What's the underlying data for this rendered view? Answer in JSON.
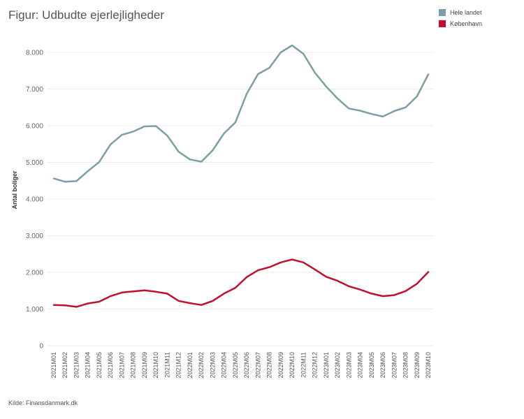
{
  "title": "Figur: Udbudte ejerlejligheder",
  "source": "Kilde: Finansdanmark.dk",
  "chart_data": {
    "type": "line",
    "title": "Figur: Udbudte ejerlejligheder",
    "ylabel": "Antal boliger",
    "xlabel": "",
    "ylim": [
      0,
      8500
    ],
    "yticks": [
      0,
      1000,
      2000,
      3000,
      4000,
      5000,
      6000,
      7000,
      8000
    ],
    "ytick_labels": [
      "0",
      "1.000",
      "2.000",
      "3.000",
      "4.000",
      "5.000",
      "6.000",
      "7.000",
      "8.000"
    ],
    "grid": true,
    "legend_position": "top-right",
    "x": [
      "2021M01",
      "2021M02",
      "2021M03",
      "2021M04",
      "2021M05",
      "2021M06",
      "2021M07",
      "2021M08",
      "2021M09",
      "2021M10",
      "2021M11",
      "2021M12",
      "2022M01",
      "2022M02",
      "2022M03",
      "2022M04",
      "2022M05",
      "2022M06",
      "2022M07",
      "2022M08",
      "2022M09",
      "2022M10",
      "2022M11",
      "2022M12",
      "2023M01",
      "2023M02",
      "2023M03",
      "2023M04",
      "2023M05",
      "2023M06",
      "2023M07",
      "2023M08",
      "2023M09",
      "2023M10"
    ],
    "series": [
      {
        "name": "Hele landet",
        "color": "#7b9fa5",
        "values": [
          4560,
          4470,
          4490,
          4760,
          5010,
          5490,
          5750,
          5840,
          5980,
          5990,
          5730,
          5290,
          5080,
          5020,
          5330,
          5790,
          6090,
          6870,
          7410,
          7580,
          8000,
          8190,
          7960,
          7450,
          7070,
          6740,
          6470,
          6410,
          6320,
          6250,
          6400,
          6500,
          6800,
          7400
        ]
      },
      {
        "name": "København",
        "color": "#c0102f",
        "values": [
          1110,
          1100,
          1060,
          1150,
          1200,
          1350,
          1450,
          1480,
          1510,
          1470,
          1420,
          1220,
          1160,
          1110,
          1220,
          1420,
          1580,
          1870,
          2060,
          2140,
          2270,
          2350,
          2270,
          2080,
          1880,
          1770,
          1620,
          1530,
          1420,
          1350,
          1380,
          1490,
          1690,
          2010
        ]
      }
    ]
  }
}
